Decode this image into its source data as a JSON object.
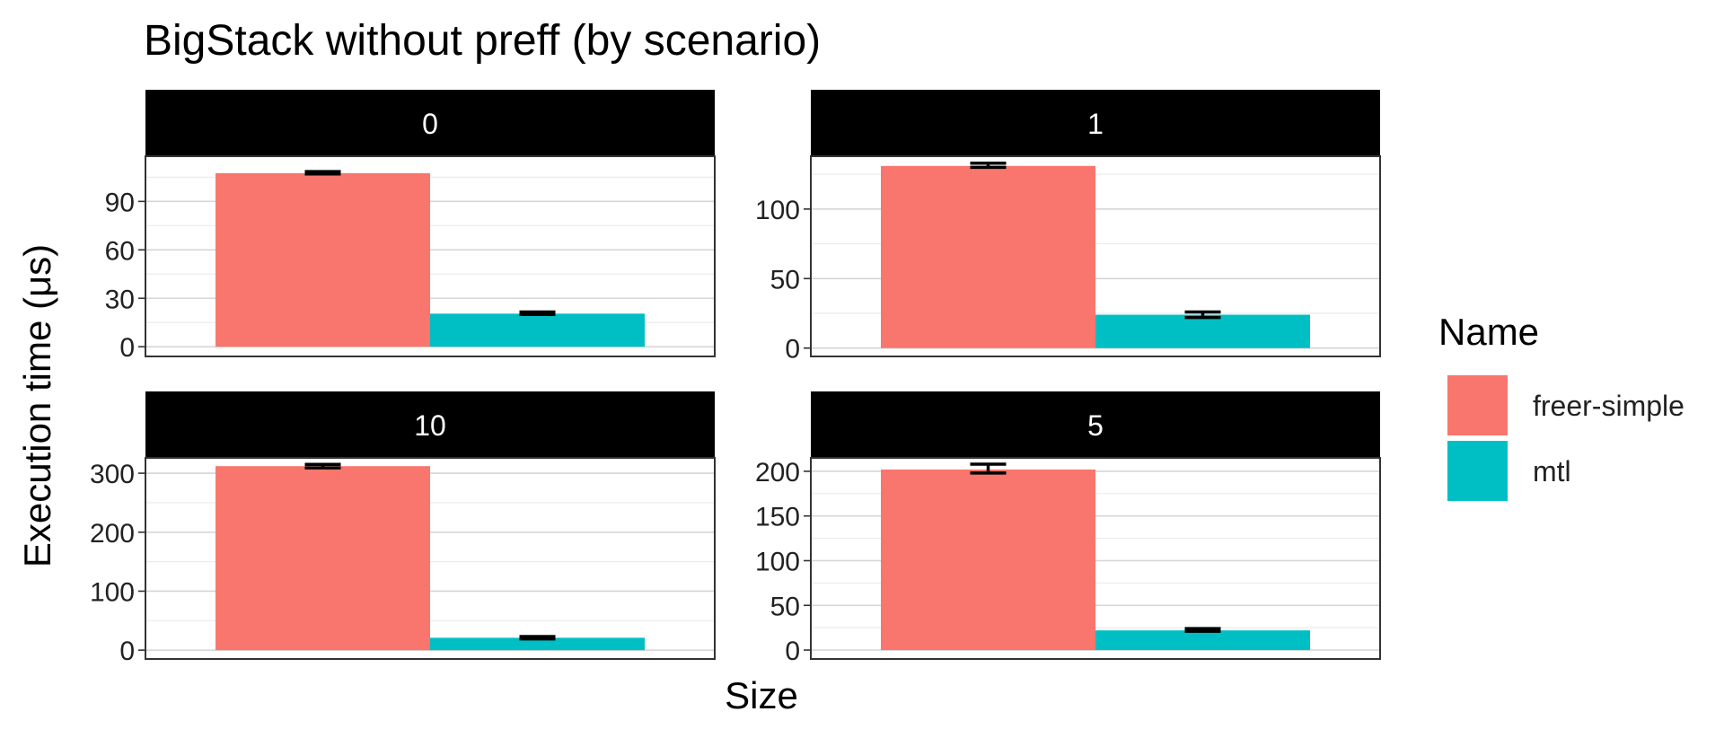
{
  "chart_data": {
    "type": "bar",
    "title": "BigStack without preff (by scenario)",
    "xlabel": "Size",
    "ylabel": "Execution time (μs)",
    "legend": {
      "title": "Name",
      "position": "right",
      "entries": [
        "freer-simple",
        "mtl"
      ]
    },
    "colors": {
      "freer-simple": "#F8766D",
      "mtl": "#00BFC4"
    },
    "grid": true,
    "panels": [
      {
        "label": "0",
        "ylim": [
          -6,
          118
        ],
        "ticks": [
          0,
          30,
          60,
          90
        ],
        "minor_ticks": [
          15,
          45,
          75,
          105
        ],
        "series": [
          {
            "name": "freer-simple",
            "value": 107.5,
            "err": [
              107,
              108.5
            ]
          },
          {
            "name": "mtl",
            "value": 20.5,
            "err": [
              20,
              21.5
            ]
          }
        ]
      },
      {
        "label": "1",
        "ylim": [
          -6,
          138
        ],
        "ticks": [
          0,
          50,
          100
        ],
        "minor_ticks": [
          25,
          75,
          125
        ],
        "series": [
          {
            "name": "freer-simple",
            "value": 131,
            "err": [
              130,
              133
            ]
          },
          {
            "name": "mtl",
            "value": 24,
            "err": [
              22,
              26
            ]
          }
        ]
      },
      {
        "label": "10",
        "ylim": [
          -15,
          326
        ],
        "ticks": [
          0,
          100,
          200,
          300
        ],
        "minor_ticks": [
          50,
          150,
          250
        ],
        "series": [
          {
            "name": "freer-simple",
            "value": 312,
            "err": [
              309,
              315
            ]
          },
          {
            "name": "mtl",
            "value": 21,
            "err": [
              19,
              23
            ]
          }
        ]
      },
      {
        "label": "5",
        "ylim": [
          -10,
          215
        ],
        "ticks": [
          0,
          50,
          100,
          150,
          200
        ],
        "minor_ticks": [
          25,
          75,
          125,
          175
        ],
        "series": [
          {
            "name": "freer-simple",
            "value": 202,
            "err": [
              198,
              208
            ]
          },
          {
            "name": "mtl",
            "value": 22,
            "err": [
              21,
              24
            ]
          }
        ]
      }
    ]
  }
}
